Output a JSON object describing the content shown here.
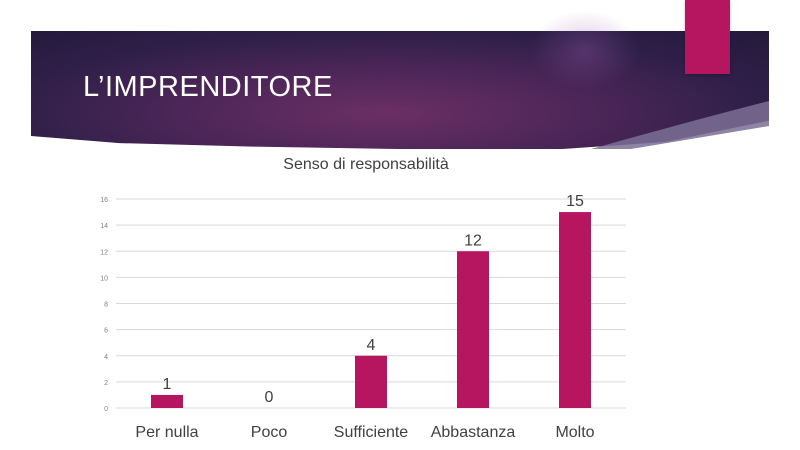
{
  "slide": {
    "title": "L’IMPRENDITORE",
    "colors": {
      "banner_dark": "#24193b",
      "banner_mid": "#6b2f64",
      "accent": "#b5165f"
    }
  },
  "chart_data": {
    "type": "bar",
    "title": "Senso di responsabilità",
    "categories": [
      "Per nulla",
      "Poco",
      "Sufficiente",
      "Abbastanza",
      "Molto"
    ],
    "values": [
      1,
      0,
      4,
      12,
      15
    ],
    "data_labels": [
      "1",
      "0",
      "4",
      "12",
      "15"
    ],
    "ylim": [
      0,
      16
    ],
    "yticks": [
      0,
      2,
      4,
      6,
      8,
      10,
      12,
      14,
      16
    ],
    "grid": true,
    "legend": "none",
    "bar_color": "#b5165f"
  }
}
